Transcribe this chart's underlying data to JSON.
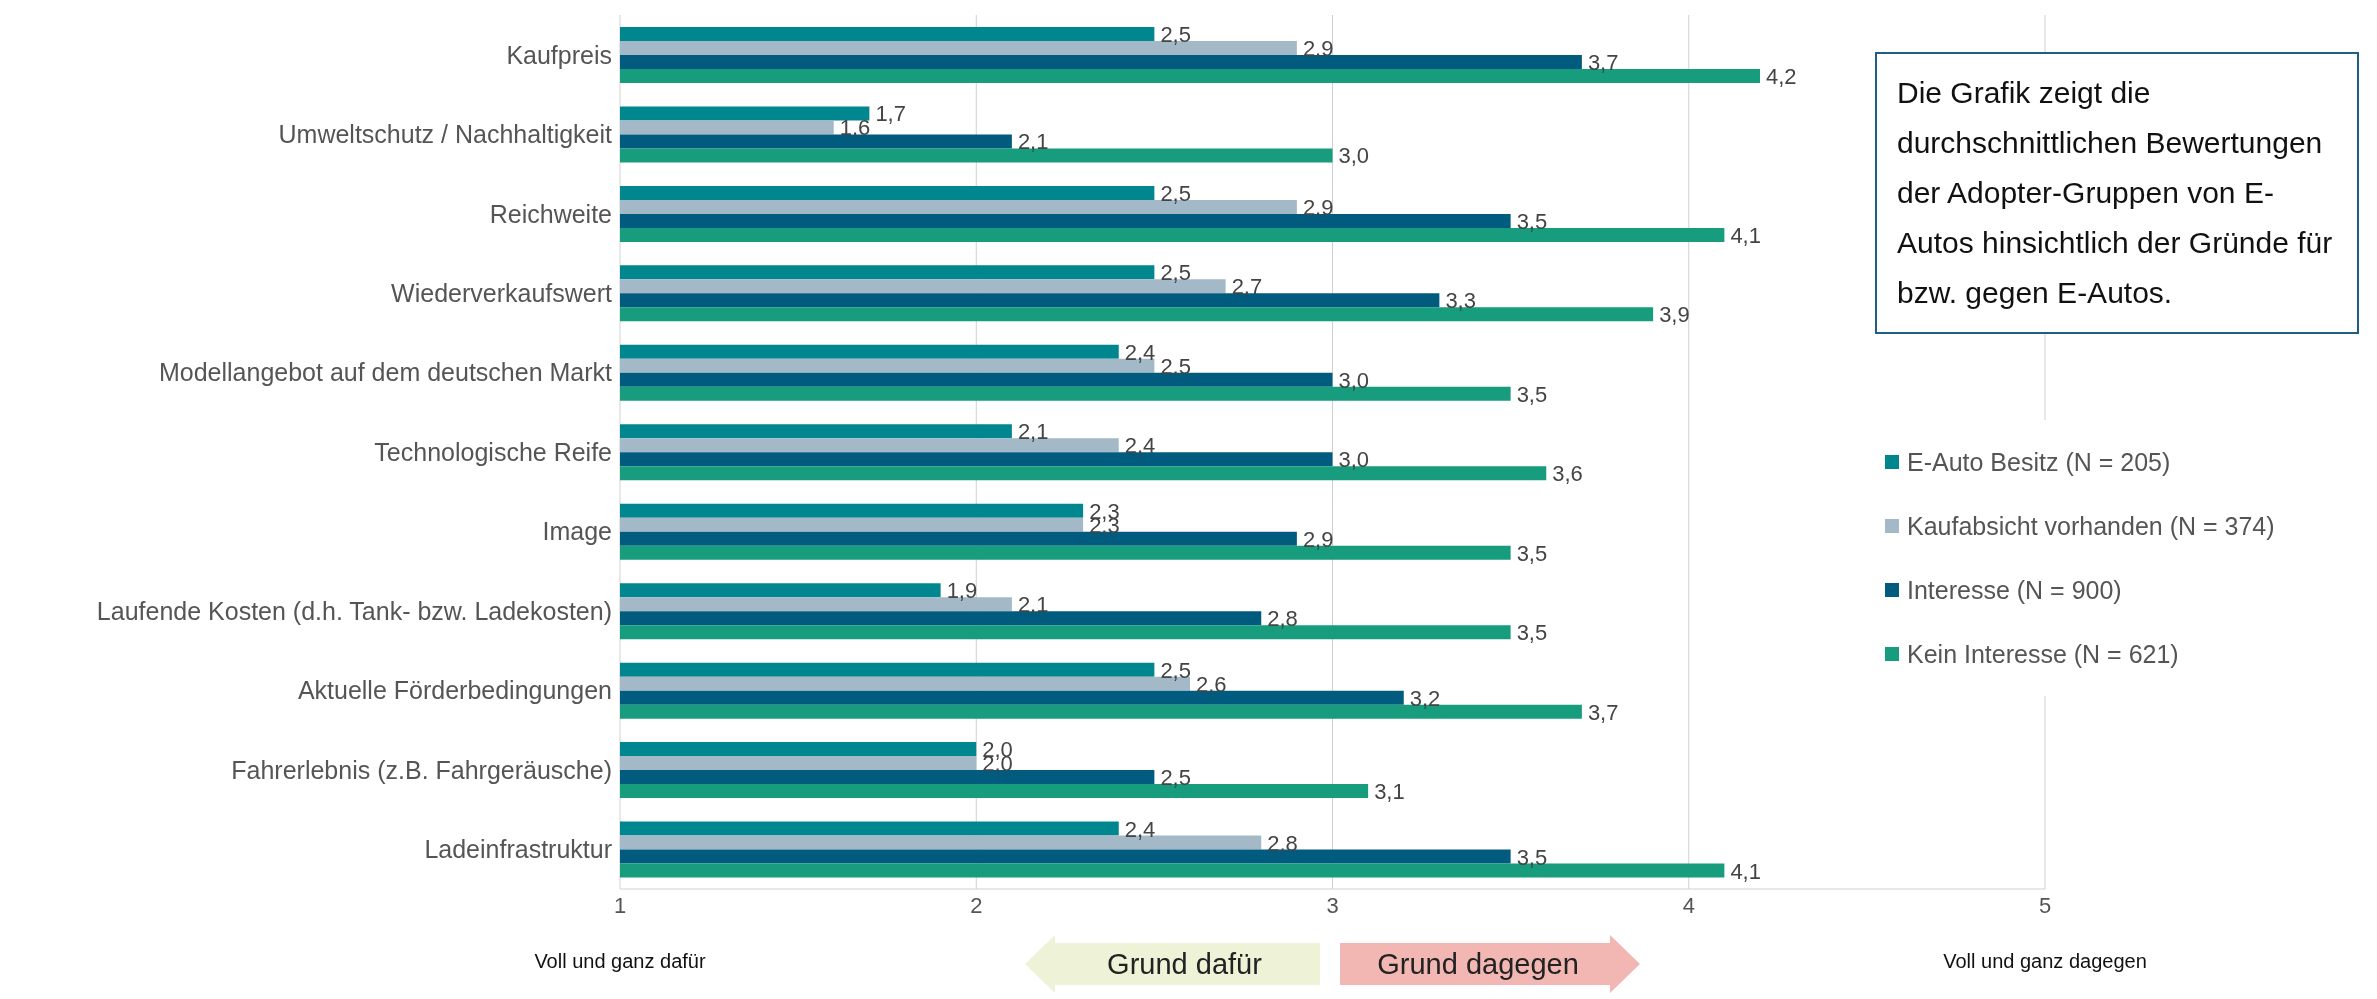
{
  "chart_data": {
    "type": "bar",
    "orientation": "horizontal",
    "categories": [
      "Kaufpreis",
      "Umweltschutz / Nachhaltigkeit",
      "Reichweite",
      "Wiederverkaufswert",
      "Modellangebot auf dem deutschen Markt",
      "Technologische Reife",
      "Image",
      "Laufende Kosten (d.h. Tank- bzw. Ladekosten)",
      "Aktuelle Förderbedingungen",
      "Fahrerlebnis (z.B. Fahrgeräusche)",
      "Ladeinfrastruktur"
    ],
    "series": [
      {
        "name": "E-Auto Besitz (N = 205)",
        "color": "#00868f",
        "values": [
          2.5,
          1.7,
          2.5,
          2.5,
          2.4,
          2.1,
          2.3,
          1.9,
          2.5,
          2.0,
          2.4
        ],
        "value_labels": [
          "2,5",
          "1,7",
          "2,5",
          "2,5",
          "2,4",
          "2,1",
          "2,3",
          "1,9",
          "2,5",
          "2,0",
          "2,4"
        ]
      },
      {
        "name": "Kaufabsicht vorhanden (N = 374)",
        "color": "#a4b9c8",
        "values": [
          2.9,
          1.6,
          2.9,
          2.7,
          2.5,
          2.4,
          2.3,
          2.1,
          2.6,
          2.0,
          2.8
        ],
        "value_labels": [
          "2,9",
          "1,6",
          "2,9",
          "2,7",
          "2,5",
          "2,4",
          "2,3",
          "2,1",
          "2,6",
          "2,0",
          "2,8"
        ]
      },
      {
        "name": "Interesse (N = 900)",
        "color": "#005b7f",
        "values": [
          3.7,
          2.1,
          3.5,
          3.3,
          3.0,
          3.0,
          2.9,
          2.8,
          3.2,
          2.5,
          3.5
        ],
        "value_labels": [
          "3,7",
          "2,1",
          "3,5",
          "3,3",
          "3,0",
          "3,0",
          "2,9",
          "2,8",
          "3,2",
          "2,5",
          "3,5"
        ]
      },
      {
        "name": "Kein Interesse (N = 621)",
        "color": "#179c7d",
        "values": [
          4.2,
          3.0,
          4.1,
          3.9,
          3.5,
          3.6,
          3.5,
          3.5,
          3.7,
          3.1,
          4.1
        ],
        "value_labels": [
          "4,2",
          "3,0",
          "4,1",
          "3,9",
          "3,5",
          "3,6",
          "3,5",
          "3,5",
          "3,7",
          "3,1",
          "4,1"
        ]
      }
    ],
    "xlim": [
      1,
      5
    ],
    "xticks": [
      1,
      2,
      3,
      4,
      5
    ],
    "grid": "x",
    "legend": "right",
    "annotations": [
      "Die Grafik zeigt die durchschnittlichen Bewertungen der Adopter-Gruppen von E-Autos hinsichtlich der Gründe für bzw. gegen E-Autos.",
      "Voll und ganz dafür",
      "Voll und ganz dagegen",
      "Grund dafür",
      "Grund dagegen"
    ]
  }
}
